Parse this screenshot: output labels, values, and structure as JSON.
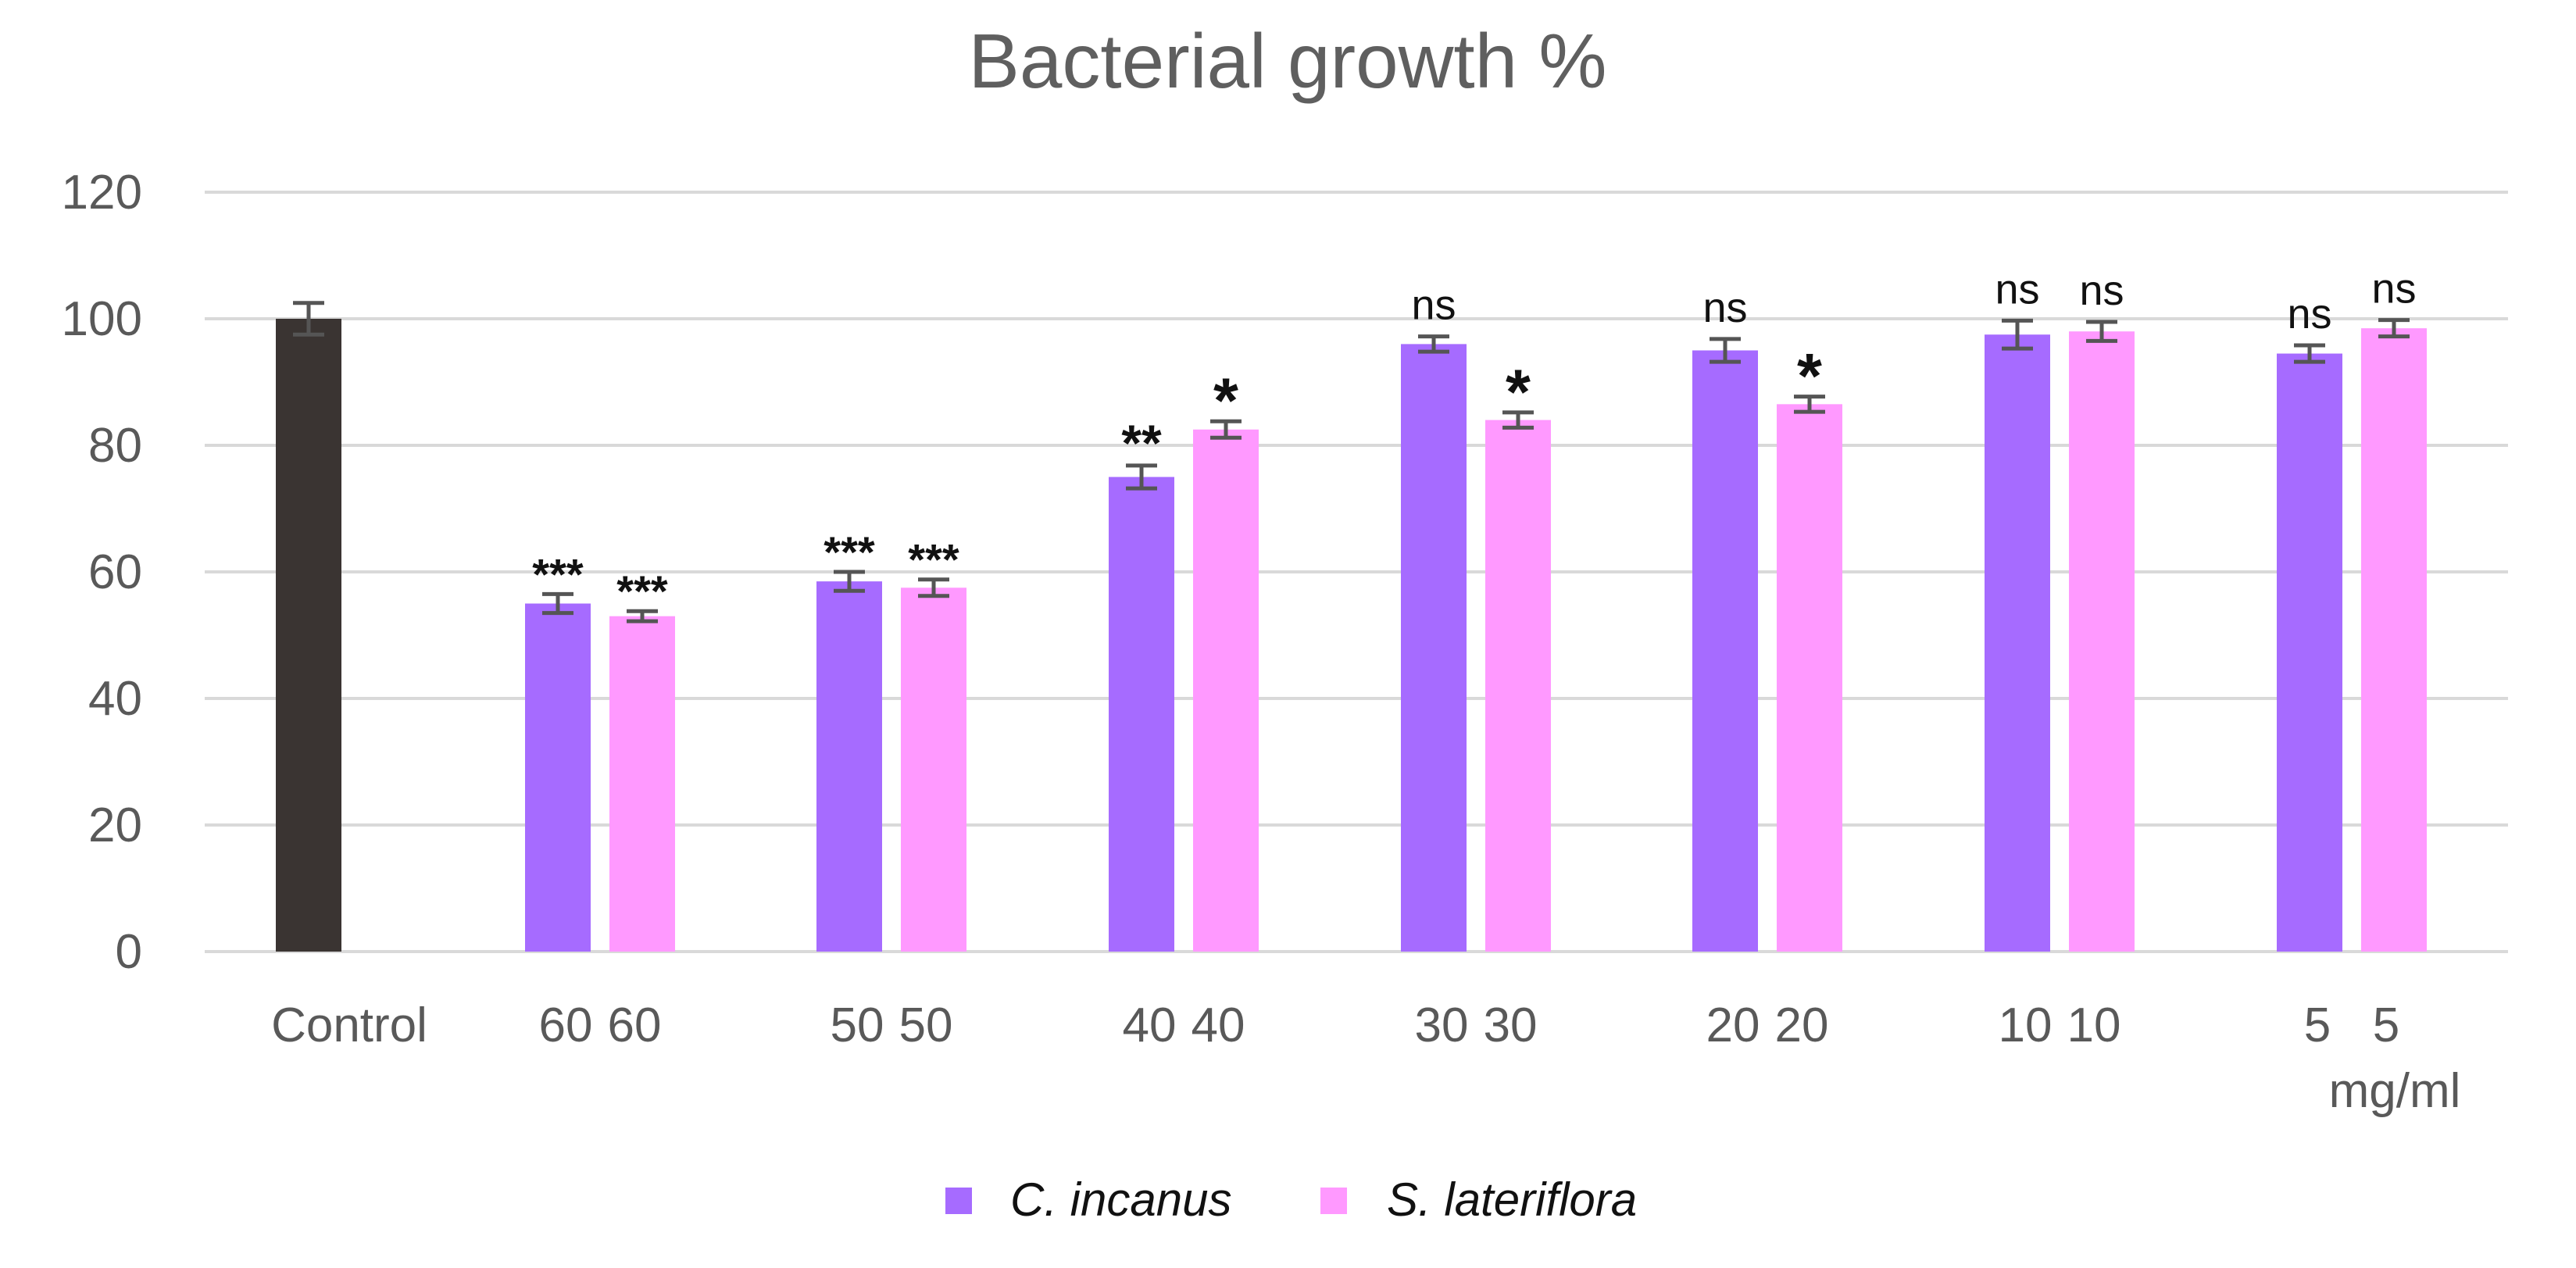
{
  "chart_data": {
    "type": "bar",
    "title": "Bacterial growth %",
    "xlabel": "",
    "ylabel": "",
    "ylim": [
      0,
      120
    ],
    "yticks": [
      0,
      20,
      40,
      60,
      80,
      100,
      120
    ],
    "grid": true,
    "legend_position": "bottom",
    "x_unit_label": "mg/ml",
    "control": {
      "label": "Control",
      "value": 100,
      "error": 2.5,
      "color": "#3a3432"
    },
    "categories": [
      "60",
      "50",
      "40",
      "30",
      "20",
      "10",
      "5"
    ],
    "series": [
      {
        "name": "C. incanus",
        "color": "#a66bff",
        "category_labels": [
          "60",
          "50",
          "40",
          "30",
          "20",
          "10",
          "5"
        ],
        "values": [
          55,
          58.5,
          75,
          96,
          95,
          97.5,
          94.5
        ],
        "errors": [
          1.5,
          1.5,
          1.8,
          1.2,
          1.8,
          2.2,
          1.3
        ],
        "significance": [
          "***",
          "***",
          "**",
          "ns",
          "ns",
          "ns",
          "ns"
        ]
      },
      {
        "name": "S. lateriflora",
        "color": "#ff99ff",
        "category_labels": [
          "60",
          "50",
          "40",
          "30",
          "20",
          "10",
          "5"
        ],
        "values": [
          53,
          57.5,
          82.5,
          84,
          86.5,
          98,
          98.5
        ],
        "errors": [
          0.8,
          1.3,
          1.3,
          1.2,
          1.2,
          1.5,
          1.3
        ],
        "significance": [
          "***",
          "***",
          "*",
          "*",
          "*",
          "ns",
          "ns"
        ]
      }
    ]
  }
}
